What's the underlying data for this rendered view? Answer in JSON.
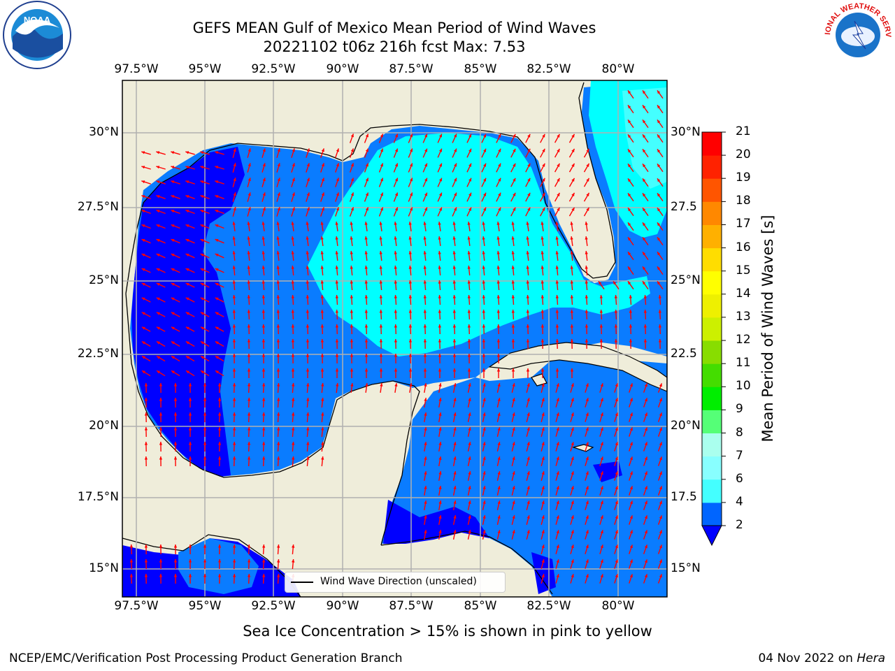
{
  "title_line1": "GEFS MEAN Gulf of Mexico Mean Period of Wind Waves",
  "title_line2": "20221102 t06z 216h fcst   Max: 7.53",
  "subtitle": "Sea Ice Concentration > 15% is shown in pink to yellow",
  "credit_left": "NCEP/EMC/Verification Post Processing Product Generation Branch",
  "credit_date": "04 Nov 2022 on ",
  "credit_host": "Hera",
  "legend_label": "Wind Wave Direction (unscaled)",
  "colorbar_title": "Mean Period of Wind Waves [s]",
  "colorbar_ticks": [
    "2",
    "4",
    "6",
    "7",
    "8",
    "9",
    "10",
    "11",
    "12",
    "13",
    "14",
    "15",
    "16",
    "17",
    "18",
    "19",
    "20",
    "21"
  ],
  "colorbar_colors": [
    "#0065ff",
    "#00ffff",
    "#44ffff",
    "#88ffff",
    "#aaffee",
    "#55ff77",
    "#00ee00",
    "#44dd00",
    "#88dd00",
    "#ccf000",
    "#eef000",
    "#ffff00",
    "#ffdd00",
    "#ffb000",
    "#ff8800",
    "#ff5500",
    "#ff2200",
    "#ff0000"
  ],
  "lon_labels": [
    "97.5°W",
    "95°W",
    "92.5°W",
    "90°W",
    "87.5°W",
    "85°W",
    "82.5°W",
    "80°W"
  ],
  "lat_labels_left": [
    "30°N",
    "27.5°N",
    "25°N",
    "22.5°N",
    "20°N",
    "17.5°N",
    "15°N"
  ],
  "lat_labels_right": [
    "30°N",
    "27.5",
    "25°N",
    "22.5",
    "20°N",
    "17.5",
    "15°N"
  ],
  "colors": {
    "land": "#efedda",
    "ocean_short": "#0000ff",
    "ocean_mid": "#0a7cff",
    "ocean_long": "#00ffff",
    "arrow": "#ff0000",
    "grid": "#b0b0b0"
  },
  "logos": {
    "left": "noaa-logo",
    "left_text": "NOAA",
    "right": "nws-logo",
    "right_text": "NATIONAL WEATHER SERVICE"
  }
}
